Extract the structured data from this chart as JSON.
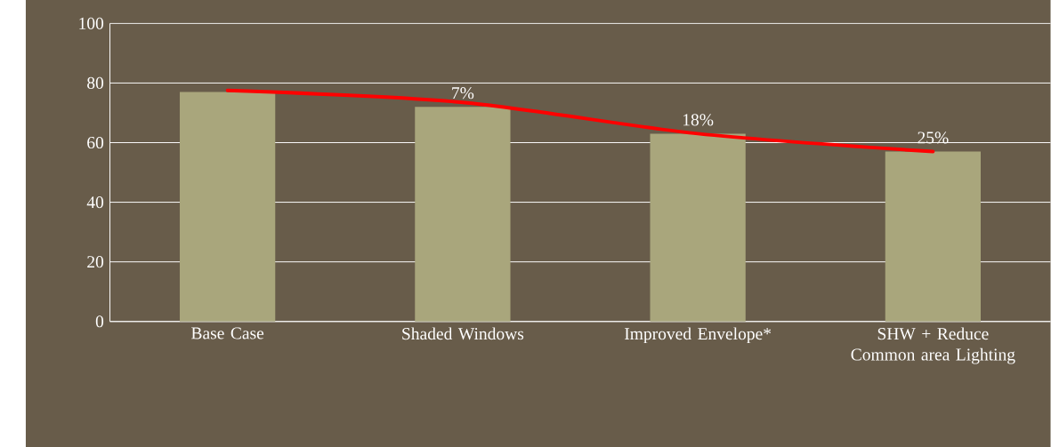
{
  "chart_data": {
    "type": "bar",
    "categories": [
      "Base Case",
      "Shaded Windows",
      "Improved Envelope*",
      "SHW + Reduce Common area Lighting"
    ],
    "series": [
      {
        "color": "#a9a67c",
        "values": [
          77,
          72,
          63,
          57
        ]
      },
      {
        "type": "line",
        "color": "#ff0000",
        "values": [
          77.5,
          73.5,
          63,
          57
        ]
      }
    ],
    "annotations": [
      {
        "text": "7%",
        "x": "Shaded Windows",
        "y": 72
      },
      {
        "text": "18%",
        "x": "Improved Envelope*",
        "y": 63
      },
      {
        "text": "25%",
        "x": "SHW + Reduce Common area Lighting",
        "y": 57
      }
    ],
    "ylim": [
      0,
      100
    ],
    "yticks": [
      0,
      20,
      40,
      60,
      80,
      100
    ],
    "grid": "y",
    "marker": "none",
    "line_style": "solid"
  }
}
